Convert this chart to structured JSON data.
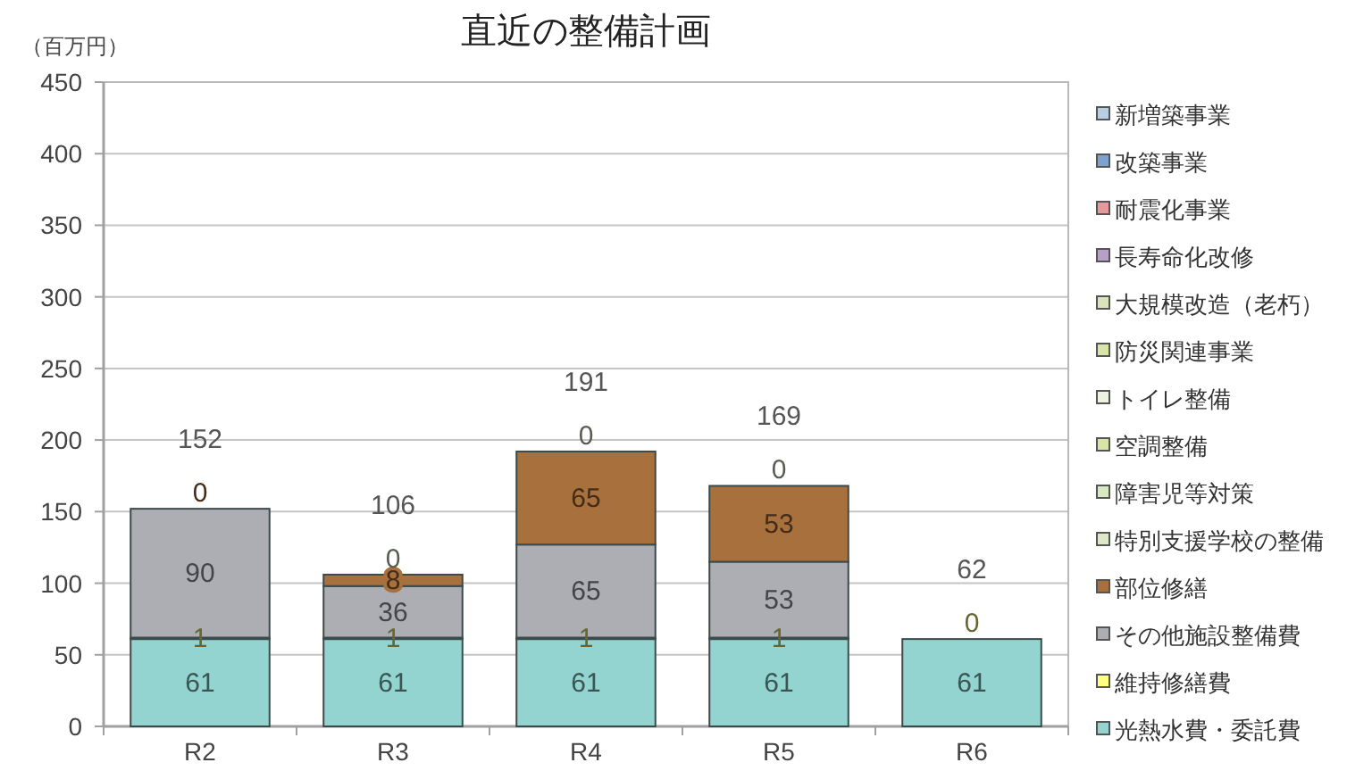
{
  "chart_data": {
    "type": "bar",
    "stacked": true,
    "title": "直近の整備計画",
    "ylabel": "（百万円）",
    "categories": [
      "R2",
      "R3",
      "R4",
      "R5",
      "R6"
    ],
    "ylim": [
      0,
      450
    ],
    "yticks": [
      0,
      50,
      100,
      150,
      200,
      250,
      300,
      350,
      400,
      450
    ],
    "grid": "y",
    "legend": "right",
    "totals": [
      "152",
      "106",
      "191",
      "169",
      "62"
    ],
    "series": [
      {
        "name": "光熱水費・委託費",
        "color": "#93d4d0",
        "values": [
          61,
          61,
          61,
          61,
          61
        ],
        "value_labels": [
          "61",
          "61",
          "61",
          "61",
          "61"
        ]
      },
      {
        "name": "維持修繕費",
        "color": "#ffff80",
        "values": [
          1,
          1,
          1,
          1,
          0
        ],
        "value_labels": [
          "1",
          "1",
          "1",
          "1",
          "0"
        ]
      },
      {
        "name": "その他施設整備費",
        "color": "#adadb4",
        "values": [
          90,
          36,
          65,
          53,
          0
        ],
        "value_labels": [
          "90",
          "36",
          "65",
          "53",
          null
        ]
      },
      {
        "name": "部位修繕",
        "color": "#a8703c",
        "values": [
          0,
          8,
          65,
          53,
          0
        ],
        "value_labels": [
          "0",
          "8",
          "65",
          "53",
          null
        ]
      },
      {
        "name": "特別支援学校の整備",
        "color": "#dde8c8",
        "values": [
          0,
          0,
          0,
          0,
          0
        ],
        "value_labels": [
          null,
          "0",
          "0",
          "0",
          null
        ]
      },
      {
        "name": "障害児等対策",
        "color": "#d8e8c0",
        "values": [
          null,
          null,
          null,
          null,
          null
        ]
      },
      {
        "name": "空調整備",
        "color": "#d6e6a6",
        "values": [
          null,
          null,
          null,
          null,
          null
        ]
      },
      {
        "name": "トイレ整備",
        "color": "#eef3e0",
        "values": [
          null,
          null,
          null,
          null,
          null
        ]
      },
      {
        "name": "防災関連事業",
        "color": "#d8e4a8",
        "values": [
          null,
          null,
          null,
          null,
          null
        ]
      },
      {
        "name": "大規模改造（老朽）",
        "color": "#d7e4bc",
        "values": [
          null,
          null,
          null,
          null,
          null
        ]
      },
      {
        "name": "長寿命化改修",
        "color": "#b7a0c8",
        "values": [
          null,
          null,
          null,
          null,
          null
        ]
      },
      {
        "name": "耐震化事業",
        "color": "#e6989a",
        "values": [
          null,
          null,
          null,
          null,
          null
        ]
      },
      {
        "name": "改築事業",
        "color": "#7da2d0",
        "values": [
          null,
          null,
          null,
          null,
          null
        ]
      },
      {
        "name": "新増築事業",
        "color": "#b9cde5",
        "values": [
          null,
          null,
          null,
          null,
          null
        ]
      }
    ]
  }
}
